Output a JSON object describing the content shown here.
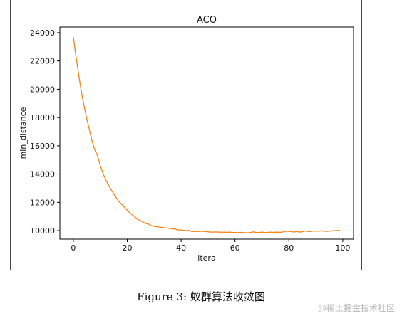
{
  "figure": {
    "caption": "Figure 3: 蚁群算法收敛图",
    "watermark": "@稀土掘金技术社区"
  },
  "chart_data": {
    "type": "line",
    "title": "ACO",
    "xlabel": "itera",
    "ylabel": "min_distance",
    "xlim": [
      -5,
      104
    ],
    "ylim": [
      9400,
      24400
    ],
    "xticks": [
      0,
      20,
      40,
      60,
      80,
      100
    ],
    "yticks": [
      10000,
      12000,
      14000,
      16000,
      18000,
      20000,
      22000,
      24000
    ],
    "grid": false,
    "series": [
      {
        "color": "#ff7f0e",
        "x": [
          0,
          1,
          2,
          3,
          4,
          5,
          6,
          7,
          8,
          9,
          10,
          11,
          12,
          13,
          14,
          15,
          16,
          17,
          18,
          19,
          20,
          21,
          22,
          23,
          24,
          25,
          26,
          27,
          28,
          29,
          30,
          31,
          32,
          33,
          34,
          35,
          36,
          37,
          38,
          39,
          40,
          41,
          42,
          43,
          44,
          45,
          46,
          47,
          48,
          49,
          50,
          51,
          52,
          53,
          54,
          55,
          56,
          57,
          58,
          59,
          60,
          61,
          62,
          63,
          64,
          65,
          66,
          67,
          68,
          69,
          70,
          71,
          72,
          73,
          74,
          75,
          76,
          77,
          78,
          79,
          80,
          81,
          82,
          83,
          84,
          85,
          86,
          87,
          88,
          89,
          90,
          91,
          92,
          93,
          94,
          95,
          96,
          97,
          98,
          99
        ],
        "y": [
          23700,
          22300,
          21000,
          19800,
          18800,
          17900,
          17100,
          16300,
          15700,
          15300,
          14600,
          14050,
          13600,
          13250,
          12900,
          12600,
          12300,
          12050,
          11850,
          11650,
          11450,
          11250,
          11100,
          10950,
          10800,
          10700,
          10600,
          10500,
          10450,
          10350,
          10300,
          10280,
          10250,
          10220,
          10200,
          10180,
          10150,
          10130,
          10100,
          10050,
          10050,
          10020,
          10000,
          10020,
          9930,
          9950,
          9930,
          9960,
          9950,
          9940,
          9920,
          9900,
          9900,
          9910,
          9900,
          9890,
          9900,
          9880,
          9900,
          9870,
          9870,
          9860,
          9880,
          9870,
          9850,
          9860,
          9880,
          9920,
          9870,
          9880,
          9900,
          9870,
          9880,
          9900,
          9880,
          9890,
          9900,
          9880,
          9920,
          9960,
          9950,
          9930,
          9900,
          9950,
          9900,
          9920,
          9980,
          9950,
          9930,
          9980,
          9970,
          9960,
          9990,
          9960,
          9950,
          9970,
          9990,
          10000,
          10010,
          10020
        ]
      }
    ]
  }
}
